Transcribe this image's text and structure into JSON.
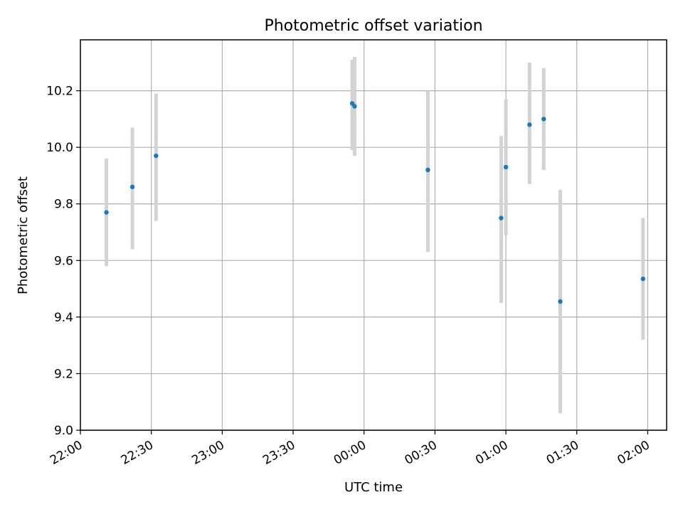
{
  "chart_data": {
    "type": "scatter",
    "title": "Photometric offset variation",
    "xlabel": "UTC time",
    "ylabel": "Photometric offset",
    "x_is_time": true,
    "xlim": [
      "22:00",
      "02:08"
    ],
    "ylim": [
      9.0,
      10.38
    ],
    "x_ticks": [
      "22:00",
      "22:30",
      "23:00",
      "23:30",
      "00:00",
      "00:30",
      "01:00",
      "01:30",
      "02:00"
    ],
    "y_ticks": [
      9.0,
      9.2,
      9.4,
      9.6,
      9.8,
      10.0,
      10.2
    ],
    "y_tick_labels": [
      "9.0",
      "9.2",
      "9.4",
      "9.6",
      "9.8",
      "10.0",
      "10.2"
    ],
    "grid": true,
    "series": [
      {
        "marker_color": "#1f77b4",
        "errorbar_color": "#d3d3d3",
        "points": [
          {
            "time": "22:11",
            "y": 9.77,
            "yerr_low": 9.58,
            "yerr_high": 9.96
          },
          {
            "time": "22:22",
            "y": 9.86,
            "yerr_low": 9.64,
            "yerr_high": 10.07
          },
          {
            "time": "22:32",
            "y": 9.97,
            "yerr_low": 9.74,
            "yerr_high": 10.19
          },
          {
            "time": "23:55",
            "y": 10.155,
            "yerr_low": 9.99,
            "yerr_high": 10.31
          },
          {
            "time": "23:56",
            "y": 10.145,
            "yerr_low": 9.97,
            "yerr_high": 10.32
          },
          {
            "time": "00:27",
            "y": 9.92,
            "yerr_low": 9.63,
            "yerr_high": 10.2
          },
          {
            "time": "00:58",
            "y": 9.75,
            "yerr_low": 9.45,
            "yerr_high": 10.04
          },
          {
            "time": "01:00",
            "y": 9.93,
            "yerr_low": 9.69,
            "yerr_high": 10.17
          },
          {
            "time": "01:10",
            "y": 10.08,
            "yerr_low": 9.87,
            "yerr_high": 10.3
          },
          {
            "time": "01:16",
            "y": 10.1,
            "yerr_low": 9.92,
            "yerr_high": 10.28
          },
          {
            "time": "01:23",
            "y": 9.455,
            "yerr_low": 9.06,
            "yerr_high": 9.85
          },
          {
            "time": "01:58",
            "y": 9.535,
            "yerr_low": 9.32,
            "yerr_high": 9.75
          }
        ]
      }
    ]
  }
}
